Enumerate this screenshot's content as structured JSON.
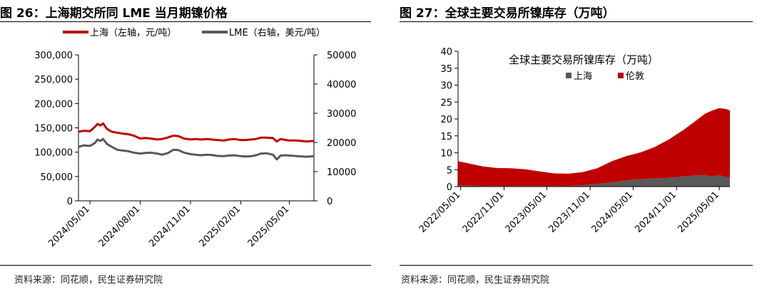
{
  "left": {
    "figure_title": "图 26：上海期交所同 LME 当月期镍价格",
    "source": "资料来源：同花顺，民生证券研究院",
    "chart_data": {
      "type": "line",
      "legend": [
        {
          "name": "上海（左轴，元/吨）",
          "color": "#c00000"
        },
        {
          "name": "LME（右轴，美元/吨）",
          "color": "#595959"
        }
      ],
      "legend_position": "top",
      "y_left": {
        "min": 0,
        "max": 300000,
        "ticks": [
          "0",
          "50,000",
          "100,000",
          "150,000",
          "200,000",
          "250,000",
          "300,000"
        ]
      },
      "y_right": {
        "min": 0,
        "max": 50000,
        "ticks": [
          "0",
          "10000",
          "20000",
          "30000",
          "40000",
          "50000"
        ]
      },
      "x_ticks": [
        "2024/05/01",
        "2024/08/01",
        "2024/11/01",
        "2025/02/01",
        "2025/05/01"
      ],
      "x_range": [
        "2024/04/10",
        "2025/06/15"
      ],
      "grid": false,
      "series": [
        {
          "name": "上海（左轴，元/吨）",
          "axis": "left",
          "color": "#c00000",
          "points": [
            [
              "2024/04/10",
              142000
            ],
            [
              "2024/04/20",
              144000
            ],
            [
              "2024/05/01",
              143000
            ],
            [
              "2024/05/10",
              152000
            ],
            [
              "2024/05/15",
              158000
            ],
            [
              "2024/05/20",
              155000
            ],
            [
              "2024/05/25",
              159000
            ],
            [
              "2024/06/01",
              148000
            ],
            [
              "2024/06/10",
              142000
            ],
            [
              "2024/06/20",
              140000
            ],
            [
              "2024/07/01",
              138000
            ],
            [
              "2024/07/10",
              137000
            ],
            [
              "2024/07/20",
              134000
            ],
            [
              "2024/08/01",
              128000
            ],
            [
              "2024/08/10",
              129000
            ],
            [
              "2024/08/20",
              128000
            ],
            [
              "2024/09/01",
              126000
            ],
            [
              "2024/09/10",
              127000
            ],
            [
              "2024/09/20",
              130000
            ],
            [
              "2024/10/01",
              134000
            ],
            [
              "2024/10/10",
              133000
            ],
            [
              "2024/10/20",
              128000
            ],
            [
              "2024/11/01",
              126000
            ],
            [
              "2024/11/10",
              127000
            ],
            [
              "2024/11/20",
              126000
            ],
            [
              "2024/12/01",
              127000
            ],
            [
              "2024/12/10",
              126000
            ],
            [
              "2024/12/20",
              125000
            ],
            [
              "2025/01/01",
              124000
            ],
            [
              "2025/01/10",
              126000
            ],
            [
              "2025/01/20",
              127000
            ],
            [
              "2025/02/01",
              125000
            ],
            [
              "2025/02/10",
              125000
            ],
            [
              "2025/02/20",
              126000
            ],
            [
              "2025/03/01",
              127000
            ],
            [
              "2025/03/10",
              130000
            ],
            [
              "2025/03/20",
              130000
            ],
            [
              "2025/04/01",
              129000
            ],
            [
              "2025/04/08",
              122000
            ],
            [
              "2025/04/15",
              127000
            ],
            [
              "2025/04/25",
              125000
            ],
            [
              "2025/05/01",
              124000
            ],
            [
              "2025/05/15",
              124000
            ],
            [
              "2025/06/01",
              122000
            ],
            [
              "2025/06/15",
              123000
            ]
          ]
        },
        {
          "name": "LME（右轴，美元/吨）",
          "axis": "right",
          "color": "#595959",
          "points": [
            [
              "2024/04/10",
              18500
            ],
            [
              "2024/04/20",
              19000
            ],
            [
              "2024/05/01",
              18800
            ],
            [
              "2024/05/10",
              19800
            ],
            [
              "2024/05/15",
              21000
            ],
            [
              "2024/05/20",
              20500
            ],
            [
              "2024/05/25",
              21200
            ],
            [
              "2024/06/01",
              19500
            ],
            [
              "2024/06/10",
              18500
            ],
            [
              "2024/06/20",
              17500
            ],
            [
              "2024/07/01",
              17200
            ],
            [
              "2024/07/10",
              17000
            ],
            [
              "2024/07/20",
              16500
            ],
            [
              "2024/08/01",
              16200
            ],
            [
              "2024/08/10",
              16400
            ],
            [
              "2024/08/20",
              16500
            ],
            [
              "2024/09/01",
              16200
            ],
            [
              "2024/09/10",
              15800
            ],
            [
              "2024/09/20",
              16300
            ],
            [
              "2024/10/01",
              17500
            ],
            [
              "2024/10/10",
              17400
            ],
            [
              "2024/10/20",
              16500
            ],
            [
              "2024/11/01",
              16000
            ],
            [
              "2024/11/10",
              15800
            ],
            [
              "2024/11/20",
              15600
            ],
            [
              "2024/12/01",
              15800
            ],
            [
              "2024/12/10",
              15700
            ],
            [
              "2024/12/20",
              15400
            ],
            [
              "2025/01/01",
              15300
            ],
            [
              "2025/01/10",
              15500
            ],
            [
              "2025/01/20",
              15600
            ],
            [
              "2025/02/01",
              15300
            ],
            [
              "2025/02/10",
              15200
            ],
            [
              "2025/02/20",
              15300
            ],
            [
              "2025/03/01",
              15600
            ],
            [
              "2025/03/10",
              16200
            ],
            [
              "2025/03/20",
              16300
            ],
            [
              "2025/04/01",
              15800
            ],
            [
              "2025/04/08",
              14200
            ],
            [
              "2025/04/15",
              15500
            ],
            [
              "2025/04/25",
              15600
            ],
            [
              "2025/05/01",
              15500
            ],
            [
              "2025/05/15",
              15300
            ],
            [
              "2025/06/01",
              15100
            ],
            [
              "2025/06/15",
              15300
            ]
          ]
        }
      ]
    }
  },
  "right": {
    "figure_title": "图 27：全球主要交易所镍库存（万吨）",
    "source": "资料来源：同花顺，民生证券研究院",
    "chart_data": {
      "type": "area",
      "stacked": true,
      "title": "全球主要交易所镍库存（万吨）",
      "legend": [
        {
          "name": "上海",
          "color": "#595959"
        },
        {
          "name": "伦敦",
          "color": "#c00000"
        }
      ],
      "legend_position": "top",
      "y": {
        "min": 0,
        "max": 40,
        "ticks": [
          "0",
          "5",
          "10",
          "15",
          "20",
          "25",
          "30",
          "35",
          "40"
        ]
      },
      "x_ticks": [
        "2022/05/01",
        "2022/11/01",
        "2023/05/01",
        "2023/11/01",
        "2024/05/01",
        "2024/11/01",
        "2025/05/01"
      ],
      "x_range": [
        "2022/04/20",
        "2025/06/15"
      ],
      "grid": false,
      "series": [
        {
          "name": "上海",
          "color": "#595959",
          "points": [
            [
              "2022/04/20",
              0.3
            ],
            [
              "2022/06/01",
              0.3
            ],
            [
              "2022/08/01",
              0.2
            ],
            [
              "2022/10/01",
              0.2
            ],
            [
              "2022/12/01",
              0.2
            ],
            [
              "2023/02/01",
              0.2
            ],
            [
              "2023/04/01",
              0.2
            ],
            [
              "2023/06/01",
              0.2
            ],
            [
              "2023/08/01",
              0.2
            ],
            [
              "2023/10/01",
              0.4
            ],
            [
              "2023/12/01",
              0.8
            ],
            [
              "2024/02/01",
              1.2
            ],
            [
              "2024/04/01",
              1.8
            ],
            [
              "2024/06/01",
              2.2
            ],
            [
              "2024/08/01",
              2.4
            ],
            [
              "2024/10/01",
              2.6
            ],
            [
              "2024/12/01",
              3.0
            ],
            [
              "2025/02/01",
              3.3
            ],
            [
              "2025/03/01",
              3.4
            ],
            [
              "2025/04/01",
              3.0
            ],
            [
              "2025/05/01",
              3.3
            ],
            [
              "2025/06/01",
              2.8
            ],
            [
              "2025/06/15",
              2.7
            ]
          ]
        },
        {
          "name": "伦敦",
          "color": "#c00000",
          "points": [
            [
              "2022/04/20",
              7.2
            ],
            [
              "2022/06/01",
              6.6
            ],
            [
              "2022/08/01",
              5.8
            ],
            [
              "2022/10/01",
              5.3
            ],
            [
              "2022/12/01",
              5.2
            ],
            [
              "2023/02/01",
              4.9
            ],
            [
              "2023/04/01",
              4.3
            ],
            [
              "2023/06/01",
              3.7
            ],
            [
              "2023/08/01",
              3.6
            ],
            [
              "2023/10/01",
              3.9
            ],
            [
              "2023/12/01",
              4.6
            ],
            [
              "2024/02/01",
              6.3
            ],
            [
              "2024/04/01",
              7.2
            ],
            [
              "2024/06/01",
              7.9
            ],
            [
              "2024/08/01",
              9.3
            ],
            [
              "2024/10/01",
              11.4
            ],
            [
              "2024/12/01",
              13.8
            ],
            [
              "2025/02/01",
              16.7
            ],
            [
              "2025/03/01",
              18.1
            ],
            [
              "2025/04/01",
              19.5
            ],
            [
              "2025/05/01",
              19.9
            ],
            [
              "2025/06/01",
              20.1
            ],
            [
              "2025/06/15",
              19.8
            ]
          ]
        }
      ]
    }
  }
}
